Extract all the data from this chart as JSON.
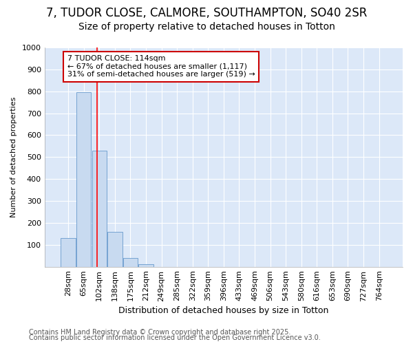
{
  "title_line1": "7, TUDOR CLOSE, CALMORE, SOUTHAMPTON, SO40 2SR",
  "title_line2": "Size of property relative to detached houses in Totton",
  "xlabel": "Distribution of detached houses by size in Totton",
  "ylabel": "Number of detached properties",
  "categories": [
    "28sqm",
    "65sqm",
    "102sqm",
    "138sqm",
    "175sqm",
    "212sqm",
    "249sqm",
    "285sqm",
    "322sqm",
    "359sqm",
    "396sqm",
    "433sqm",
    "469sqm",
    "506sqm",
    "543sqm",
    "580sqm",
    "616sqm",
    "653sqm",
    "690sqm",
    "727sqm",
    "764sqm"
  ],
  "values": [
    130,
    795,
    530,
    160,
    40,
    10,
    0,
    0,
    0,
    0,
    0,
    0,
    0,
    0,
    0,
    0,
    0,
    0,
    0,
    0,
    0
  ],
  "bar_color": "#c8daf0",
  "bar_edge_color": "#6699cc",
  "annotation_text": "7 TUDOR CLOSE: 114sqm\n← 67% of detached houses are smaller (1,117)\n31% of semi-detached houses are larger (519) →",
  "annotation_box_facecolor": "#ffffff",
  "annotation_box_edgecolor": "#cc0000",
  "ylim": [
    0,
    1000
  ],
  "yticks": [
    0,
    100,
    200,
    300,
    400,
    500,
    600,
    700,
    800,
    900,
    1000
  ],
  "plot_bg_color": "#dce8f8",
  "fig_bg_color": "#ffffff",
  "footer_line1": "Contains HM Land Registry data © Crown copyright and database right 2025.",
  "footer_line2": "Contains public sector information licensed under the Open Government Licence v3.0.",
  "grid_color": "#ffffff",
  "title1_fontsize": 12,
  "title2_fontsize": 10,
  "tick_fontsize": 8,
  "xlabel_fontsize": 9,
  "ylabel_fontsize": 8,
  "annotation_fontsize": 8,
  "footer_fontsize": 7,
  "subject_sqm": 114,
  "bin_start_sqm": [
    28,
    65,
    102,
    138,
    175,
    212,
    249,
    285,
    322,
    359,
    396,
    433,
    469,
    506,
    543,
    580,
    616,
    653,
    690,
    727,
    764
  ]
}
